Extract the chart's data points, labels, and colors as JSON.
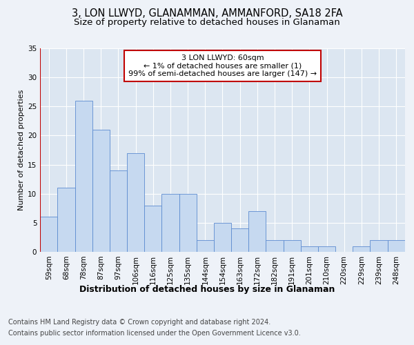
{
  "title": "3, LON LLWYD, GLANAMMAN, AMMANFORD, SA18 2FA",
  "subtitle": "Size of property relative to detached houses in Glanaman",
  "xlabel": "Distribution of detached houses by size in Glanaman",
  "ylabel": "Number of detached properties",
  "categories": [
    "59sqm",
    "68sqm",
    "78sqm",
    "87sqm",
    "97sqm",
    "106sqm",
    "116sqm",
    "125sqm",
    "135sqm",
    "144sqm",
    "154sqm",
    "163sqm",
    "172sqm",
    "182sqm",
    "191sqm",
    "201sqm",
    "210sqm",
    "220sqm",
    "229sqm",
    "239sqm",
    "248sqm"
  ],
  "values": [
    6,
    11,
    26,
    21,
    14,
    17,
    8,
    10,
    10,
    2,
    5,
    4,
    7,
    2,
    2,
    1,
    1,
    0,
    1,
    2,
    2
  ],
  "bar_color": "#c6d9f0",
  "bar_edge_color": "#5b8bd0",
  "highlight_color": "#c00000",
  "annotation_text": "3 LON LLWYD: 60sqm\n← 1% of detached houses are smaller (1)\n99% of semi-detached houses are larger (147) →",
  "annotation_box_color": "#ffffff",
  "annotation_box_edge_color": "#c00000",
  "bg_color": "#eef2f8",
  "plot_bg_color": "#dce6f1",
  "grid_color": "#ffffff",
  "ylim": [
    0,
    35
  ],
  "yticks": [
    0,
    5,
    10,
    15,
    20,
    25,
    30,
    35
  ],
  "footer_line1": "Contains HM Land Registry data © Crown copyright and database right 2024.",
  "footer_line2": "Contains public sector information licensed under the Open Government Licence v3.0.",
  "title_fontsize": 10.5,
  "subtitle_fontsize": 9.5,
  "xlabel_fontsize": 9,
  "ylabel_fontsize": 8,
  "tick_fontsize": 7.5,
  "footer_fontsize": 7,
  "ann_fontsize": 8
}
